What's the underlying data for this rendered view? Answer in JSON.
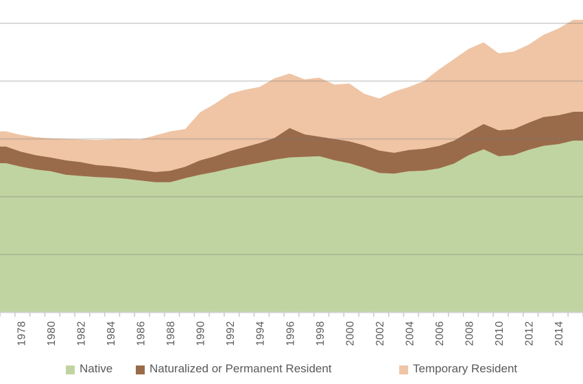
{
  "legend": {
    "items": [
      {
        "label": "Native",
        "color": "#C0D4A1"
      },
      {
        "label": "Naturalized or Permanent Resident",
        "color": "#9A6B4A"
      },
      {
        "label": "Temporary Resident",
        "color": "#EFC5A5"
      }
    ]
  },
  "chart_data": {
    "type": "area",
    "stacked": true,
    "title": "",
    "xlabel": "",
    "ylabel": "",
    "x": [
      1977,
      1978,
      1979,
      1980,
      1981,
      1982,
      1983,
      1984,
      1985,
      1986,
      1987,
      1988,
      1989,
      1990,
      1991,
      1992,
      1993,
      1994,
      1995,
      1996,
      1997,
      1998,
      1999,
      2000,
      2001,
      2002,
      2003,
      2004,
      2005,
      2006,
      2007,
      2008,
      2009,
      2010,
      2011,
      2012,
      2013,
      2014,
      2015
    ],
    "x_tick_labels": [
      "1978",
      "1980",
      "1982",
      "1984",
      "1986",
      "1988",
      "1990",
      "1992",
      "1994",
      "1996",
      "1998",
      "2000",
      "2002",
      "2004",
      "2006",
      "2008",
      "2010",
      "2012",
      "2014"
    ],
    "series": [
      {
        "name": "Native",
        "color": "#C0D4A1",
        "values": [
          2.58,
          2.52,
          2.47,
          2.44,
          2.38,
          2.36,
          2.34,
          2.33,
          2.31,
          2.28,
          2.25,
          2.25,
          2.32,
          2.38,
          2.43,
          2.49,
          2.54,
          2.59,
          2.64,
          2.68,
          2.69,
          2.7,
          2.63,
          2.58,
          2.5,
          2.41,
          2.4,
          2.44,
          2.45,
          2.49,
          2.57,
          2.72,
          2.82,
          2.7,
          2.72,
          2.81,
          2.88,
          2.91,
          2.97
        ]
      },
      {
        "name": "Naturalized or Permanent Resident",
        "color": "#9A6B4A",
        "values": [
          0.29,
          0.26,
          0.25,
          0.24,
          0.25,
          0.24,
          0.21,
          0.2,
          0.19,
          0.18,
          0.18,
          0.2,
          0.2,
          0.25,
          0.27,
          0.3,
          0.32,
          0.34,
          0.38,
          0.51,
          0.39,
          0.34,
          0.37,
          0.38,
          0.39,
          0.39,
          0.36,
          0.37,
          0.38,
          0.39,
          0.4,
          0.4,
          0.44,
          0.45,
          0.45,
          0.47,
          0.5,
          0.5,
          0.5
        ]
      },
      {
        "name": "Temporary Resident",
        "color": "#EFC5A5",
        "values": [
          0.26,
          0.29,
          0.31,
          0.33,
          0.37,
          0.39,
          0.43,
          0.46,
          0.5,
          0.53,
          0.63,
          0.68,
          0.65,
          0.83,
          0.91,
          0.99,
          0.99,
          0.97,
          1.03,
          0.94,
          0.95,
          1.02,
          0.94,
          1.0,
          0.89,
          0.9,
          1.06,
          1.09,
          1.17,
          1.32,
          1.41,
          1.44,
          1.41,
          1.33,
          1.34,
          1.35,
          1.42,
          1.5,
          1.59
        ]
      }
    ],
    "ylim": [
      0,
      5.4
    ],
    "y_gridlines": [
      1,
      2,
      3,
      4,
      5
    ],
    "y_axis_labels_visible": false,
    "y_unit": "gridline-spacing units (axis value labels not visible in image)",
    "legend_position": "bottom",
    "grid": true,
    "gridline_color": "#D9D9D9",
    "axis_line_color": "#D0D0D0",
    "tick_color": "#C9C9C9",
    "text_color": "#595959"
  }
}
